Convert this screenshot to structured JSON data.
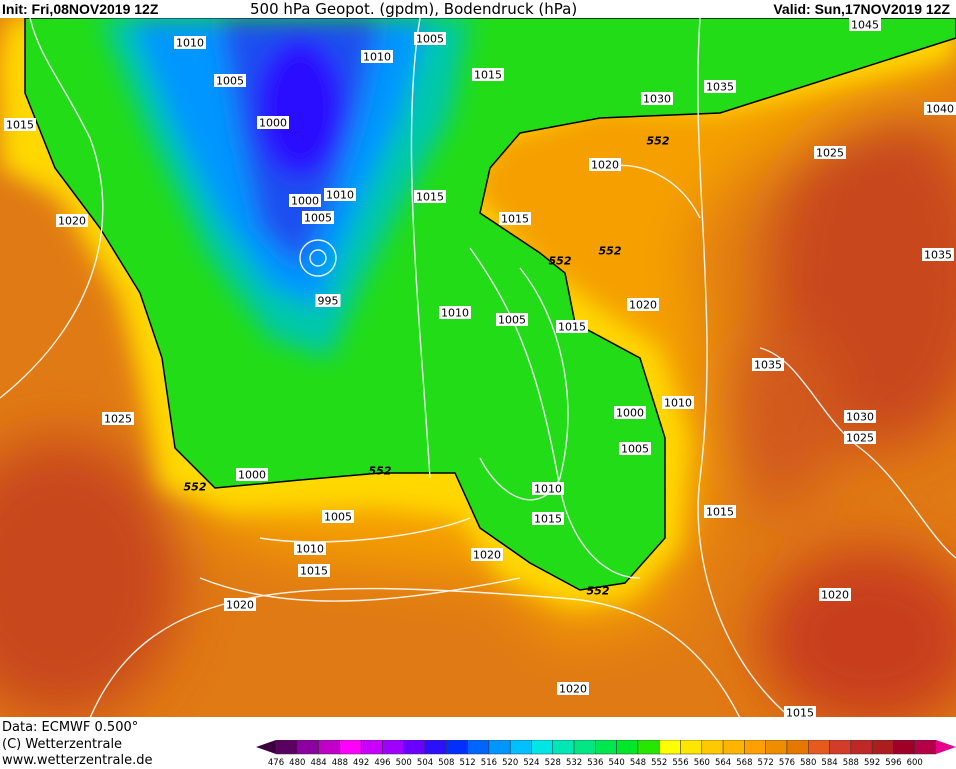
{
  "header": {
    "init": "Init: Fri,08NOV2019 12Z",
    "title": "500 hPa Geopot. (gpdm), Bodendruck (hPa)",
    "valid": "Valid: Sun,17NOV2019 12Z"
  },
  "footer": {
    "data_source": "Data: ECMWF   0.500°",
    "copyright": "(C) Wetterzentrale",
    "website": "www.wetterzentrale.de"
  },
  "map": {
    "geopotential_contour_label": "552",
    "isobar_labels": [
      "1010",
      "1005",
      "1010",
      "1015",
      "1035",
      "1030",
      "1045",
      "1040",
      "1005",
      "1000",
      "1015",
      "1015",
      "1000",
      "1010",
      "1005",
      "1015",
      "1020",
      "1025",
      "1035",
      "1020",
      "552",
      "552",
      "995",
      "1010",
      "1005",
      "1015",
      "1020",
      "1035",
      "1030",
      "1010",
      "1000",
      "1005",
      "1025",
      "1025",
      "1000",
      "552",
      "1010",
      "1005",
      "1015",
      "1010",
      "1015",
      "1020",
      "1015",
      "552",
      "1020",
      "1020",
      "1020",
      "1015",
      "552",
      "552"
    ],
    "colors": {
      "blue_low": "#0a50e6",
      "green": "#10e010",
      "yellow": "#ffee20",
      "orange": "#f5a000",
      "red": "#c8461e"
    }
  },
  "colorbar": {
    "ticks": [
      "476",
      "480",
      "484",
      "488",
      "492",
      "496",
      "500",
      "504",
      "508",
      "512",
      "516",
      "520",
      "524",
      "528",
      "532",
      "536",
      "540",
      "548",
      "552",
      "556",
      "560",
      "564",
      "568",
      "572",
      "576",
      "580",
      "584",
      "588",
      "592",
      "596",
      "600"
    ],
    "colors": [
      "#5a0060",
      "#8c00a0",
      "#c000c8",
      "#ff00ff",
      "#c800ff",
      "#a000ff",
      "#6a00ff",
      "#2a10ff",
      "#0030ff",
      "#0064ff",
      "#0096ff",
      "#00c0ff",
      "#00e6e6",
      "#00e6b4",
      "#00e682",
      "#00e650",
      "#00e628",
      "#28e600",
      "#ffff00",
      "#ffe600",
      "#ffc800",
      "#ffb400",
      "#ffa000",
      "#f08c00",
      "#e67800",
      "#e65a1e",
      "#d23c28",
      "#be2828",
      "#aa1e1e",
      "#a00028",
      "#b40046"
    ],
    "low_end_color": "#3c0040",
    "high_end_color": "#e6008c"
  }
}
